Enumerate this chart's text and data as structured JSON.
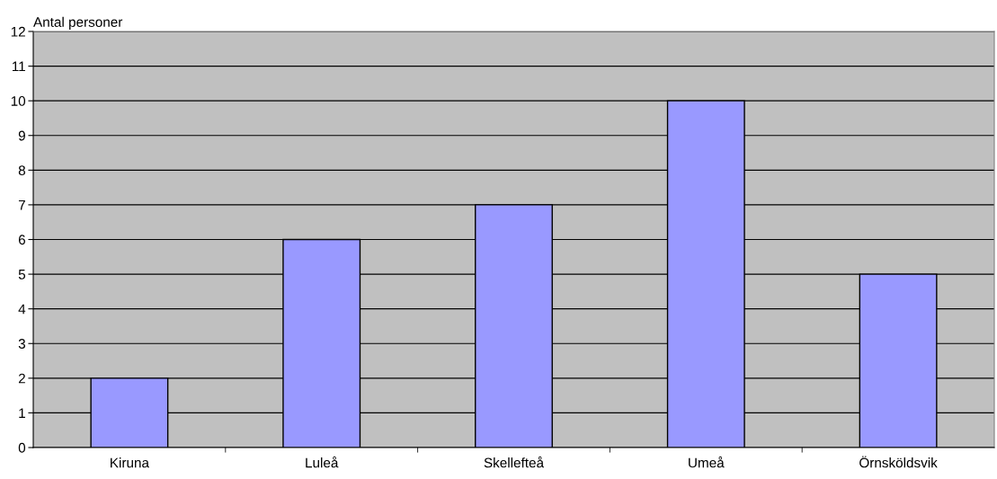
{
  "chart_data": {
    "type": "bar",
    "ylabel": "Antal personer",
    "categories": [
      "Kiruna",
      "Luleå",
      "Skellefteå",
      "Umeå",
      "Örnsköldsvik"
    ],
    "values": [
      2,
      6,
      7,
      10,
      5
    ],
    "color": "#9999ff",
    "ylim": [
      0,
      12
    ],
    "yticks": [
      0,
      1,
      2,
      3,
      4,
      5,
      6,
      7,
      8,
      9,
      10,
      11,
      12
    ],
    "grid": "y",
    "legend": false
  }
}
